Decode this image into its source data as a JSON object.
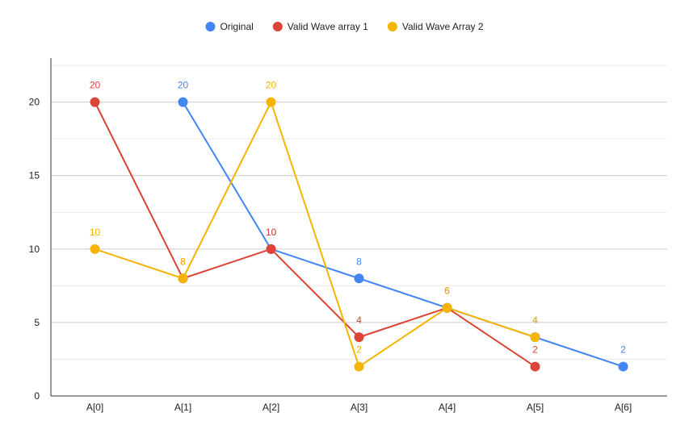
{
  "chart_data": {
    "type": "line",
    "title": "",
    "xlabel": "",
    "ylabel": "",
    "categories": [
      "A[0]",
      "A[1]",
      "A[2]",
      "A[3]",
      "A[4]",
      "A[5]",
      "A[6]"
    ],
    "ylim": [
      0,
      23
    ],
    "yticks": [
      0,
      5,
      10,
      15,
      20
    ],
    "grid": true,
    "legend": "top-center",
    "data_labels": true,
    "series": [
      {
        "name": "Original",
        "color": "#4285F4",
        "values": [
          null,
          20,
          10,
          8,
          6,
          4,
          2
        ]
      },
      {
        "name": "Valid Wave array 1",
        "color": "#DB4437",
        "values": [
          20,
          8,
          10,
          4,
          6,
          2,
          null
        ]
      },
      {
        "name": "Valid Wave Array 2",
        "color": "#F4B400",
        "values": [
          10,
          8,
          20,
          2,
          6,
          4,
          null
        ]
      }
    ]
  }
}
